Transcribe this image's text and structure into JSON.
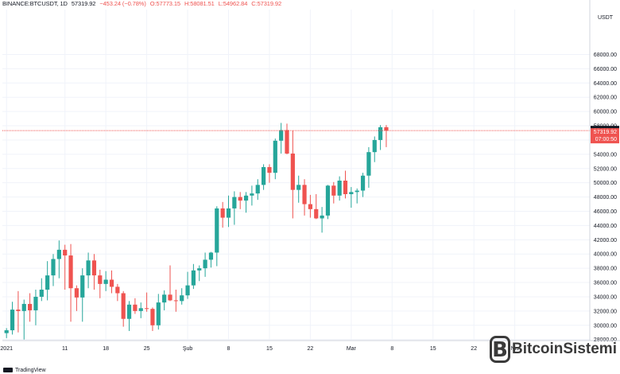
{
  "header": {
    "symbol": "BINANCE:BTCUSDT, 1D",
    "last": "57319.92",
    "change": "−453.24 (−0.78%)",
    "open": "O:57773.15",
    "high": "H:58081.51",
    "low": "L:54962.84",
    "close": "C:57319.92"
  },
  "footer": {
    "brand": "TradingView"
  },
  "watermark": {
    "text": "BitcoinSistemi",
    "icon": "bitcoin-b-icon"
  },
  "colors": {
    "up": "#26a69a",
    "down": "#ef5350",
    "grid": "#f0f3fa",
    "last_line": "#ef5350",
    "marker": "#131722"
  },
  "chart_data": {
    "type": "candlestick",
    "currency": "USDT",
    "y_ticks": [
      28000,
      30000,
      32000,
      34000,
      36000,
      38000,
      40000,
      42000,
      44000,
      46000,
      48000,
      50000,
      52000,
      54000,
      56000,
      58000,
      60000,
      62000,
      64000,
      66000,
      68000
    ],
    "x_ticks": [
      {
        "label": "2021",
        "i": 0
      },
      {
        "label": "11",
        "i": 10
      },
      {
        "label": "18",
        "i": 17
      },
      {
        "label": "25",
        "i": 24
      },
      {
        "label": "Şub",
        "i": 31
      },
      {
        "label": "8",
        "i": 38
      },
      {
        "label": "15",
        "i": 45
      },
      {
        "label": "22",
        "i": 52
      },
      {
        "label": "Mar",
        "i": 59
      },
      {
        "label": "8",
        "i": 66
      },
      {
        "label": "15",
        "i": 73
      },
      {
        "label": "22",
        "i": 80
      },
      {
        "label": "Nis",
        "i": 87
      }
    ],
    "last_price": "57319.92",
    "marker_price": "57430.01",
    "countdown": "07:00:50",
    "candles": [
      {
        "o": 28900,
        "h": 29600,
        "l": 28200,
        "c": 29300
      },
      {
        "o": 29300,
        "h": 33300,
        "l": 28700,
        "c": 32200
      },
      {
        "o": 32200,
        "h": 34800,
        "l": 29000,
        "c": 32000
      },
      {
        "o": 32000,
        "h": 33600,
        "l": 28000,
        "c": 33000
      },
      {
        "o": 33000,
        "h": 34500,
        "l": 30500,
        "c": 32100
      },
      {
        "o": 32100,
        "h": 35000,
        "l": 30000,
        "c": 34000
      },
      {
        "o": 34000,
        "h": 36600,
        "l": 33400,
        "c": 35000
      },
      {
        "o": 35000,
        "h": 39000,
        "l": 33500,
        "c": 37000
      },
      {
        "o": 37000,
        "h": 40000,
        "l": 35500,
        "c": 39300
      },
      {
        "o": 39300,
        "h": 41900,
        "l": 36600,
        "c": 40600
      },
      {
        "o": 40600,
        "h": 41300,
        "l": 35000,
        "c": 39800
      },
      {
        "o": 39800,
        "h": 41400,
        "l": 30500,
        "c": 35200
      },
      {
        "o": 35200,
        "h": 35600,
        "l": 32000,
        "c": 33900
      },
      {
        "o": 33900,
        "h": 38000,
        "l": 30500,
        "c": 37000
      },
      {
        "o": 37000,
        "h": 40200,
        "l": 35200,
        "c": 39100
      },
      {
        "o": 39100,
        "h": 40000,
        "l": 35000,
        "c": 37000
      },
      {
        "o": 37000,
        "h": 37800,
        "l": 33800,
        "c": 35800
      },
      {
        "o": 35800,
        "h": 37600,
        "l": 34800,
        "c": 36400
      },
      {
        "o": 36400,
        "h": 37700,
        "l": 34500,
        "c": 35400
      },
      {
        "o": 35400,
        "h": 35800,
        "l": 33400,
        "c": 34500
      },
      {
        "o": 34500,
        "h": 34800,
        "l": 29800,
        "c": 30900
      },
      {
        "o": 30900,
        "h": 33400,
        "l": 29200,
        "c": 32900
      },
      {
        "o": 32900,
        "h": 33800,
        "l": 31600,
        "c": 32000
      },
      {
        "o": 32000,
        "h": 33200,
        "l": 31000,
        "c": 32400
      },
      {
        "o": 32400,
        "h": 34600,
        "l": 31900,
        "c": 32300
      },
      {
        "o": 32300,
        "h": 32500,
        "l": 29200,
        "c": 30000
      },
      {
        "o": 30000,
        "h": 34400,
        "l": 29400,
        "c": 33200
      },
      {
        "o": 33200,
        "h": 34900,
        "l": 32100,
        "c": 34300
      },
      {
        "o": 34300,
        "h": 38400,
        "l": 33400,
        "c": 33500
      },
      {
        "o": 33500,
        "h": 35000,
        "l": 31900,
        "c": 33400
      },
      {
        "o": 33400,
        "h": 35200,
        "l": 32900,
        "c": 34200
      },
      {
        "o": 34200,
        "h": 37500,
        "l": 33700,
        "c": 35600
      },
      {
        "o": 35600,
        "h": 38600,
        "l": 35100,
        "c": 37700
      },
      {
        "o": 37700,
        "h": 38400,
        "l": 36200,
        "c": 38000
      },
      {
        "o": 38000,
        "h": 40200,
        "l": 36800,
        "c": 39200
      },
      {
        "o": 39200,
        "h": 40300,
        "l": 38100,
        "c": 40200
      },
      {
        "o": 40200,
        "h": 46700,
        "l": 38300,
        "c": 46400
      },
      {
        "o": 46400,
        "h": 47300,
        "l": 43700,
        "c": 45100
      },
      {
        "o": 45100,
        "h": 48200,
        "l": 43800,
        "c": 46400
      },
      {
        "o": 46400,
        "h": 48800,
        "l": 44100,
        "c": 48000
      },
      {
        "o": 48000,
        "h": 48700,
        "l": 46300,
        "c": 47500
      },
      {
        "o": 47500,
        "h": 48700,
        "l": 45800,
        "c": 48200
      },
      {
        "o": 48200,
        "h": 49600,
        "l": 46800,
        "c": 48500
      },
      {
        "o": 48500,
        "h": 50500,
        "l": 47600,
        "c": 49700
      },
      {
        "o": 49700,
        "h": 52600,
        "l": 49000,
        "c": 52200
      },
      {
        "o": 52200,
        "h": 52600,
        "l": 50000,
        "c": 51400
      },
      {
        "o": 51400,
        "h": 56200,
        "l": 50500,
        "c": 55900
      },
      {
        "o": 55900,
        "h": 58400,
        "l": 54100,
        "c": 57400
      },
      {
        "o": 57400,
        "h": 58300,
        "l": 54000,
        "c": 54100
      },
      {
        "o": 54100,
        "h": 57300,
        "l": 45000,
        "c": 49000
      },
      {
        "o": 49000,
        "h": 51000,
        "l": 47200,
        "c": 49700
      },
      {
        "o": 49700,
        "h": 50500,
        "l": 45400,
        "c": 47000
      },
      {
        "o": 47000,
        "h": 48300,
        "l": 45100,
        "c": 46300
      },
      {
        "o": 46300,
        "h": 48400,
        "l": 44900,
        "c": 45000
      },
      {
        "o": 45000,
        "h": 46600,
        "l": 43000,
        "c": 45400
      },
      {
        "o": 45400,
        "h": 49700,
        "l": 44900,
        "c": 49600
      },
      {
        "o": 49600,
        "h": 50100,
        "l": 47100,
        "c": 48200
      },
      {
        "o": 48200,
        "h": 50900,
        "l": 47500,
        "c": 50300
      },
      {
        "o": 50300,
        "h": 51700,
        "l": 47800,
        "c": 48400
      },
      {
        "o": 48400,
        "h": 49400,
        "l": 46500,
        "c": 48700
      },
      {
        "o": 48700,
        "h": 49200,
        "l": 47100,
        "c": 48900
      },
      {
        "o": 48900,
        "h": 51400,
        "l": 48000,
        "c": 51000
      },
      {
        "o": 51000,
        "h": 55000,
        "l": 49300,
        "c": 54300
      },
      {
        "o": 54300,
        "h": 56500,
        "l": 52900,
        "c": 56000
      },
      {
        "o": 56000,
        "h": 58100,
        "l": 54600,
        "c": 57800
      },
      {
        "o": 57800,
        "h": 58100,
        "l": 55000,
        "c": 57320
      }
    ]
  }
}
